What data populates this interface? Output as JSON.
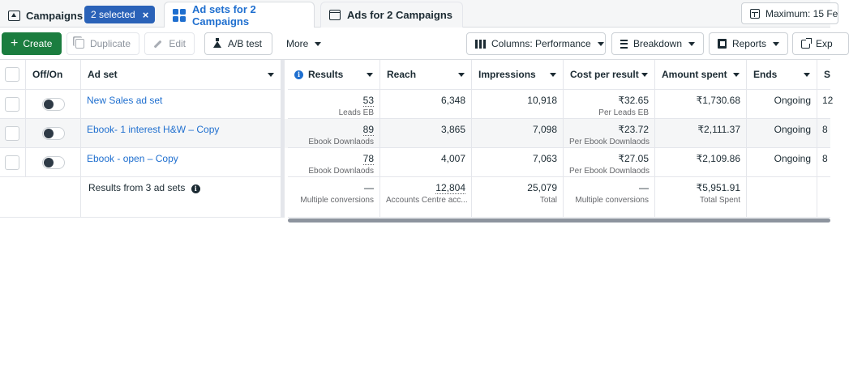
{
  "tabs": {
    "campaigns_label": "Campaigns",
    "selected_label": "2 selected",
    "selected_close": "×",
    "adsets_label": "Ad sets for 2 Campaigns",
    "ads_label": "Ads for 2 Campaigns",
    "date_label": "Maximum: 15 Fe"
  },
  "toolbar": {
    "create_label": "Create",
    "create_plus": "+",
    "duplicate_label": "Duplicate",
    "edit_label": "Edit",
    "ab_test_label": "A/B test",
    "more_label": "More",
    "columns_label": "Columns: Performance",
    "breakdown_label": "Breakdown",
    "reports_label": "Reports",
    "export_label": "Exp"
  },
  "table": {
    "headers": {
      "off_on": "Off/On",
      "ad_set": "Ad set",
      "results": "Results",
      "reach": "Reach",
      "impressions": "Impressions",
      "cost_per_result": "Cost per result",
      "amount_spent": "Amount spent",
      "ends": "Ends",
      "s": "S"
    },
    "rows": [
      {
        "name": "New Sales ad set",
        "results": "53",
        "results_sub": "Leads EB",
        "reach": "6,348",
        "impressions": "10,918",
        "cpr": "₹32.65",
        "cpr_sub": "Per Leads EB",
        "spent": "₹1,730.68",
        "ends": "Ongoing",
        "s": "12"
      },
      {
        "name": "Ebook- 1 interest H&W – Copy",
        "results": "89",
        "results_sub": "Ebook Downlaods",
        "reach": "3,865",
        "impressions": "7,098",
        "cpr": "₹23.72",
        "cpr_sub": "Per Ebook Downlaods",
        "spent": "₹2,111.37",
        "ends": "Ongoing",
        "s": "8"
      },
      {
        "name": "Ebook - open – Copy",
        "results": "78",
        "results_sub": "Ebook Downlaods",
        "reach": "4,007",
        "impressions": "7,063",
        "cpr": "₹27.05",
        "cpr_sub": "Per Ebook Downlaods",
        "spent": "₹2,109.86",
        "ends": "Ongoing",
        "s": "8"
      }
    ],
    "summary": {
      "label": "Results from 3 ad sets",
      "results": "—",
      "results_sub": "Multiple conversions",
      "reach": "12,804",
      "reach_sub": "Accounts Centre acc...",
      "impressions": "25,079",
      "impressions_sub": "Total",
      "cpr": "—",
      "cpr_sub": "Multiple conversions",
      "spent": "₹5,951.91",
      "spent_sub": "Total Spent"
    }
  }
}
